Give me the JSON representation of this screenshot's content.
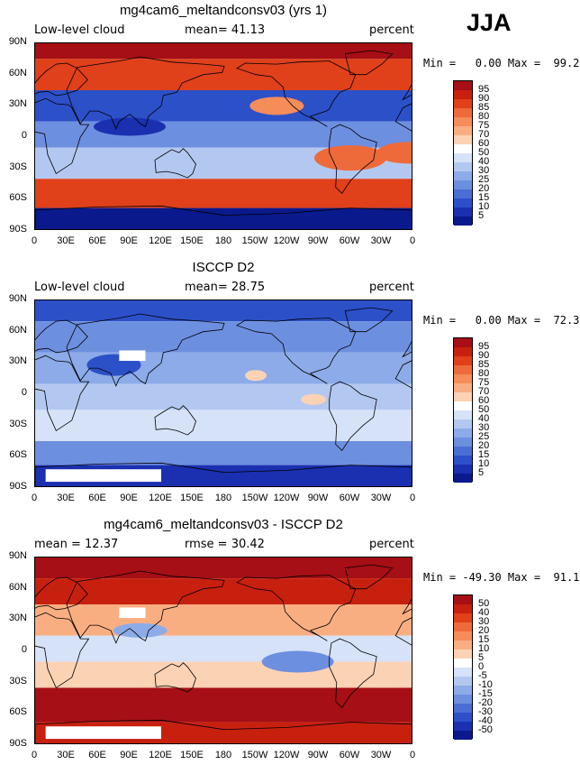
{
  "season": "JJA",
  "lat_labels": [
    "90N",
    "60N",
    "30N",
    "0",
    "30S",
    "60S",
    "90S"
  ],
  "lon_labels": [
    "0",
    "30E",
    "60E",
    "90E",
    "120E",
    "150E",
    "180",
    "150W",
    "120W",
    "90W",
    "60W",
    "30W",
    "0"
  ],
  "panels": [
    {
      "title": "mg4cam6_meltandconsv03 (yrs 1)",
      "left_text": "Low-level cloud",
      "mid_text": "mean=  41.13",
      "right_text": "percent",
      "minmax": "Min =   0.00 Max =  99.21",
      "colorbar_labels": [
        "95",
        "90",
        "85",
        "80",
        "75",
        "70",
        "60",
        "50",
        "40",
        "30",
        "25",
        "20",
        "15",
        "10",
        "5"
      ],
      "colorbar_colors": [
        "#a50f15",
        "#c8200e",
        "#e0401a",
        "#ee6a3a",
        "#f58c5a",
        "#f9ae82",
        "#fcd2b4",
        "#ffffff",
        "#d6e2f7",
        "#b3c8f0",
        "#8cabe8",
        "#6d8fe0",
        "#4a6ed4",
        "#2c50c8",
        "#1a30b0",
        "#0a1a8c"
      ],
      "style": "model"
    },
    {
      "title": "ISCCP D2",
      "left_text": "Low-level cloud",
      "mid_text": "mean=  28.75",
      "right_text": "percent",
      "minmax": "Min =   0.00 Max =  72.34",
      "colorbar_labels": [
        "95",
        "90",
        "85",
        "80",
        "75",
        "70",
        "60",
        "50",
        "40",
        "30",
        "25",
        "20",
        "15",
        "10",
        "5"
      ],
      "colorbar_colors": [
        "#a50f15",
        "#c8200e",
        "#e0401a",
        "#ee6a3a",
        "#f58c5a",
        "#f9ae82",
        "#fcd2b4",
        "#ffffff",
        "#d6e2f7",
        "#b3c8f0",
        "#8cabe8",
        "#6d8fe0",
        "#4a6ed4",
        "#2c50c8",
        "#1a30b0",
        "#0a1a8c"
      ],
      "style": "obs"
    },
    {
      "title": "mg4cam6_meltandconsv03 - ISCCP D2",
      "left_text": "mean =  12.37",
      "mid_text": "rmse =  30.42",
      "right_text": "percent",
      "minmax": "Min = -49.30 Max =  91.15",
      "colorbar_labels": [
        "50",
        "40",
        "30",
        "20",
        "15",
        "10",
        "5",
        "0",
        "-5",
        "-10",
        "-15",
        "-20",
        "-30",
        "-40",
        "-50"
      ],
      "colorbar_colors": [
        "#a50f15",
        "#c8200e",
        "#e0401a",
        "#ee6a3a",
        "#f58c5a",
        "#f9ae82",
        "#fcd2b4",
        "#ffffff",
        "#d6e2f7",
        "#b3c8f0",
        "#8cabe8",
        "#6d8fe0",
        "#4a6ed4",
        "#2c50c8",
        "#1a30b0",
        "#0a1a8c"
      ],
      "style": "diff"
    }
  ]
}
